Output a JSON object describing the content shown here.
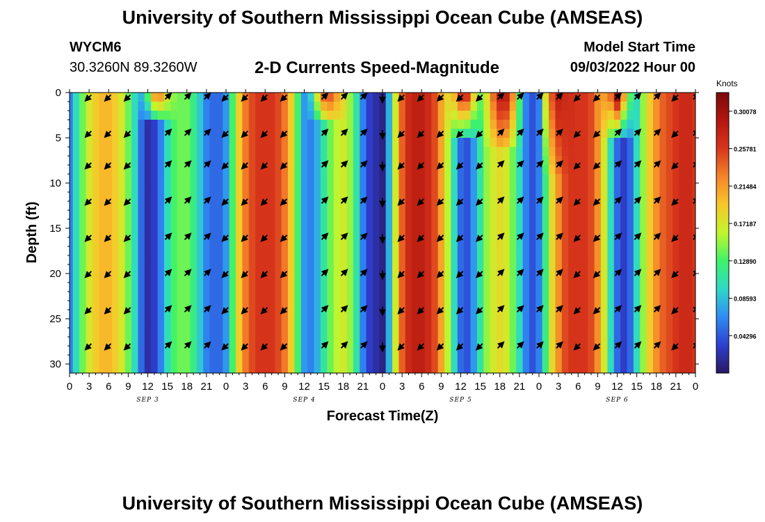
{
  "header": {
    "title_top": "University of Southern Mississippi Ocean Cube (AMSEAS)",
    "station_id": "WYCM6",
    "station_coords": "30.3260N  89.3260W",
    "plot_title": "2-D Currents Speed-Magnitude",
    "model_start_label": "Model Start Time",
    "model_start_value": "09/03/2022 Hour 00"
  },
  "footer": {
    "title_bottom": "University of Southern Mississippi Ocean Cube (AMSEAS)"
  },
  "colors": {
    "palette": [
      "#2a1863",
      "#2e3fd0",
      "#2f8cf5",
      "#2fd8c8",
      "#3ef26a",
      "#c2f52c",
      "#f7c72a",
      "#f5842a",
      "#d8361c",
      "#b3160e",
      "#7a0a0a"
    ],
    "arrow": "#000000"
  },
  "chart_data": {
    "type": "heatmap",
    "title": "2-D Currents Speed-Magnitude",
    "xlabel": "Forecast Time(Z)",
    "ylabel": "Depth (ft)",
    "xlim": [
      0,
      96
    ],
    "ylim": [
      31,
      0
    ],
    "x_ticks": [
      0,
      3,
      6,
      9,
      12,
      15,
      18,
      21,
      24,
      27,
      30,
      33,
      36,
      39,
      42,
      45,
      48,
      51,
      54,
      57,
      60,
      63,
      66,
      69,
      72,
      75,
      78,
      81,
      84,
      87,
      90,
      93,
      96
    ],
    "x_tick_labels": [
      "0",
      "3",
      "6",
      "9",
      "12",
      "15",
      "18",
      "21",
      "0",
      "3",
      "6",
      "9",
      "12",
      "15",
      "18",
      "21",
      "0",
      "3",
      "6",
      "9",
      "12",
      "15",
      "18",
      "21",
      "0",
      "3",
      "6",
      "9",
      "12",
      "15",
      "18",
      "21",
      "0"
    ],
    "y_ticks": [
      0,
      5,
      10,
      15,
      20,
      25,
      30
    ],
    "y_tick_labels": [
      "0",
      "5",
      "10",
      "15",
      "20",
      "25",
      "30"
    ],
    "day_labels": [
      {
        "label": "SEP 3",
        "x": 12
      },
      {
        "label": "SEP 4",
        "x": 36
      },
      {
        "label": "SEP 5",
        "x": 60
      },
      {
        "label": "SEP 6",
        "x": 84
      }
    ],
    "colorbar": {
      "label": "Knots",
      "min": 0,
      "max": 0.3222,
      "ticks": [
        0.30078,
        0.25781,
        0.21484,
        0.17187,
        0.1289,
        0.08593,
        0.04296
      ],
      "tick_labels": [
        "0.30078",
        "0.25781",
        "0.21484",
        "0.17187",
        "0.12890",
        "0.08593",
        "0.04296"
      ]
    },
    "speed_profile": {
      "times": [
        0,
        1,
        2,
        3,
        4,
        5,
        6,
        7,
        8,
        9,
        10,
        11,
        12,
        13,
        14,
        15,
        16,
        17,
        18,
        19,
        20,
        21,
        22,
        23,
        24,
        25,
        26,
        27,
        28,
        29,
        30,
        31,
        32,
        33,
        34,
        35,
        36,
        37,
        38,
        39,
        40,
        41,
        42,
        43,
        44,
        45,
        46,
        47,
        48,
        49,
        50,
        51,
        52,
        53,
        54,
        55,
        56,
        57,
        58,
        59,
        60,
        61,
        62,
        63,
        64,
        65,
        66,
        67,
        68,
        69,
        70,
        71,
        72,
        73,
        74,
        75,
        76,
        77,
        78,
        79,
        80,
        81,
        82,
        83,
        84,
        85,
        86,
        87,
        88,
        89,
        90,
        91,
        92,
        93,
        94,
        95,
        96
      ],
      "values": [
        0.06,
        0.1,
        0.14,
        0.17,
        0.19,
        0.2,
        0.2,
        0.19,
        0.17,
        0.14,
        0.1,
        0.05,
        0.02,
        0.03,
        0.06,
        0.1,
        0.13,
        0.14,
        0.14,
        0.12,
        0.09,
        0.06,
        0.05,
        0.05,
        0.07,
        0.13,
        0.19,
        0.23,
        0.25,
        0.26,
        0.26,
        0.26,
        0.25,
        0.23,
        0.19,
        0.13,
        0.07,
        0.06,
        0.08,
        0.11,
        0.14,
        0.16,
        0.17,
        0.15,
        0.11,
        0.06,
        0.03,
        0.02,
        0.01,
        0.08,
        0.17,
        0.24,
        0.27,
        0.28,
        0.28,
        0.27,
        0.25,
        0.21,
        0.16,
        0.1,
        0.05,
        0.04,
        0.07,
        0.11,
        0.15,
        0.17,
        0.18,
        0.17,
        0.14,
        0.1,
        0.06,
        0.04,
        0.06,
        0.12,
        0.18,
        0.22,
        0.25,
        0.26,
        0.26,
        0.26,
        0.25,
        0.22,
        0.17,
        0.1,
        0.05,
        0.03,
        0.05,
        0.1,
        0.15,
        0.19,
        0.22,
        0.24,
        0.25,
        0.26,
        0.27,
        0.27,
        0.26
      ]
    },
    "near_surface_maxima": [
      {
        "x": 13.5,
        "depth_max": 3,
        "value": 0.24
      },
      {
        "x": 39.5,
        "depth_max": 3,
        "value": 0.26
      },
      {
        "x": 60.5,
        "depth_max": 5,
        "value": 0.3
      },
      {
        "x": 66.5,
        "depth_max": 6,
        "value": 0.3
      },
      {
        "x": 75,
        "depth_max": 9,
        "value": 0.28
      },
      {
        "x": 84,
        "depth_max": 5,
        "value": 0.3
      }
    ],
    "vector_grid": {
      "times": [
        3,
        6,
        9,
        15,
        18,
        21,
        24,
        27,
        30,
        33,
        39,
        42,
        45,
        48,
        51,
        54,
        57,
        60,
        63,
        66,
        69,
        72,
        75,
        78,
        81,
        84,
        87,
        90,
        93,
        96
      ],
      "depths": [
        0.5,
        4.5,
        8,
        12,
        16,
        20,
        24,
        28
      ],
      "directions_deg": [
        225,
        225,
        225,
        45,
        45,
        45,
        225,
        225,
        225,
        225,
        45,
        45,
        45,
        270,
        225,
        225,
        225,
        225,
        225,
        45,
        45,
        45,
        45,
        225,
        225,
        45,
        45,
        45,
        225,
        45
      ]
    }
  }
}
